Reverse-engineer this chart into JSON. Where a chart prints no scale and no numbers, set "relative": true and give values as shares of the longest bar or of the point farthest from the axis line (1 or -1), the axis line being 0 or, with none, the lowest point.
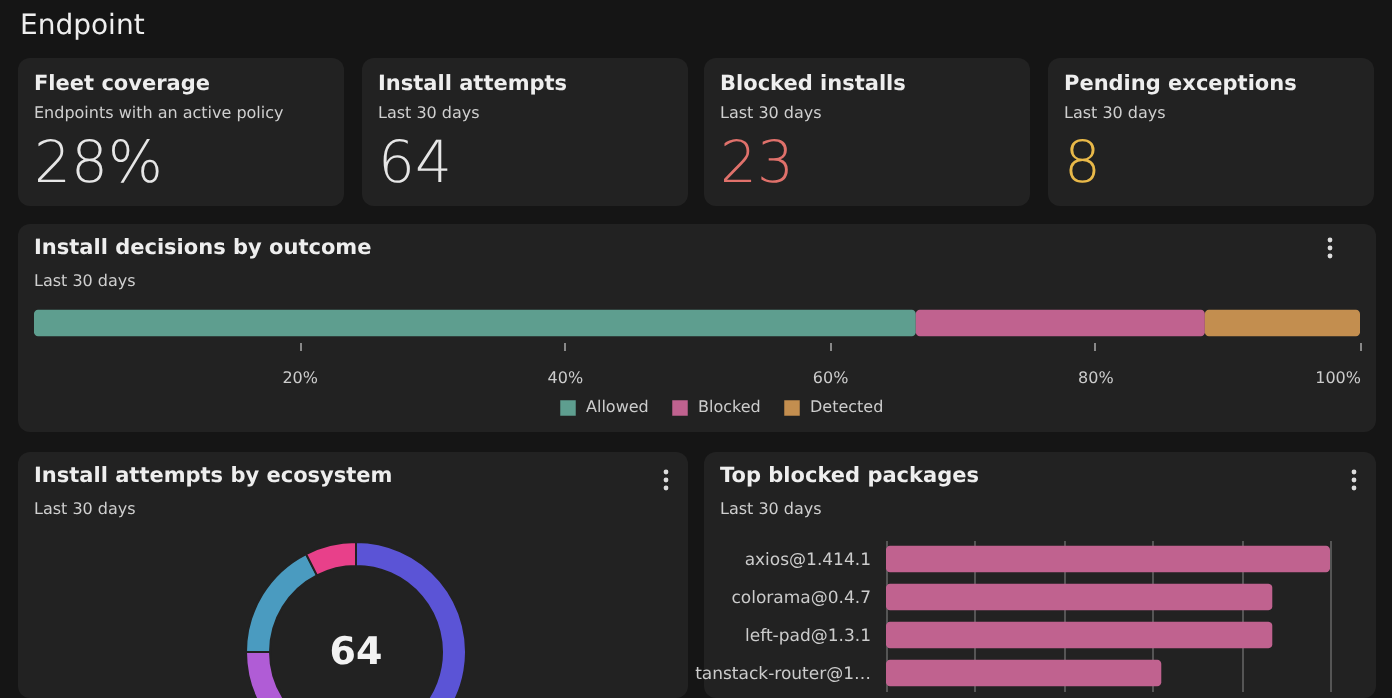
{
  "chart_data": [
    {
      "type": "other",
      "title": "Endpoint",
      "annotations": [
        "Fleet coverage",
        "Endpoints with an active policy",
        "28%",
        "Install attempts",
        "Last 30 days",
        "64",
        "Blocked installs",
        "Last 30 days",
        "23",
        "Pending exceptions",
        "Last 30 days",
        "8"
      ]
    },
    {
      "type": "bar",
      "title": "Install decisions by outcome",
      "subtitle": "Last 30 days",
      "orientation": "horizontal",
      "stacked": true,
      "categories": [
        null
      ],
      "series": [
        {
          "name": "Allowed",
          "color": "#5e9e8f",
          "values": [
            66.5
          ]
        },
        {
          "name": "Blocked",
          "color": "#c0628f",
          "values": [
            21.8
          ]
        },
        {
          "name": "Detected",
          "color": "#c38e4f",
          "values": [
            11.7
          ]
        }
      ],
      "xlim": [
        0,
        100
      ],
      "xticks": [
        {
          "value": 20,
          "label": "20%"
        },
        {
          "value": 40,
          "label": "40%"
        },
        {
          "value": 60,
          "label": "60%"
        },
        {
          "value": 80,
          "label": "80%"
        },
        {
          "value": 100,
          "label": "100%"
        }
      ],
      "legend": "bottom",
      "grid": false
    },
    {
      "type": "donut",
      "title": "Install attempts by ecosystem",
      "subtitle": "Last 30 days",
      "categories": [
        null,
        null,
        null,
        null
      ],
      "values": [
        55.5,
        19.5,
        17.5,
        7.5
      ],
      "colors": [
        "#5b54d6",
        "#b05cd6",
        "#4a9bc0",
        "#e8408a"
      ],
      "annotations": [
        "64"
      ]
    },
    {
      "type": "bar",
      "title": "Top blocked packages",
      "subtitle": "Last 30 days",
      "orientation": "horizontal",
      "relative": true,
      "categories": [
        "axios@1.414.1",
        "colorama@0.4.7",
        "left-pad@1.3.1",
        "tanstack-router@1…"
      ],
      "values": [
        1,
        0.87,
        0.87,
        0.62
      ],
      "color": "#c0628f",
      "grid": "x"
    }
  ]
}
